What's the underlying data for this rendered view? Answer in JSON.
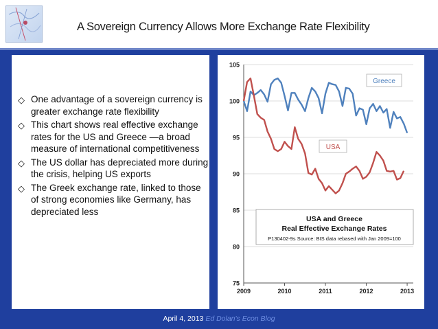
{
  "slide": {
    "title": "A Sovereign Currency Allows More Exchange Rate Flexibility",
    "bullets": [
      "One advantage of a sovereign currency is greater exchange rate flexibility",
      "This chart shows real effective exchange rates for the US and Greece —a broad measure of international competitiveness",
      "The US dollar has depreciated more during the crisis, helping US exports",
      "The Greek exchange rate, linked to those of strong economies like Germany, has depreciated less"
    ],
    "footer_date": "April 4, 2013",
    "footer_blog": "Ed Dolan's Econ Blog"
  },
  "colors": {
    "background": "#1f3f9e",
    "greece": "#4f81bd",
    "usa": "#c0504d"
  },
  "chart_data": {
    "type": "line",
    "title": "USA and Greece\nReal Effective Exchange Rates",
    "note": "P130402-9s Source: BIS data rebased with Jan 2009=100",
    "xlabel": "",
    "ylabel": "",
    "xlim": [
      2009,
      2013.15
    ],
    "ylim": [
      75,
      105
    ],
    "x_ticks": [
      "2009",
      "2010",
      "2011",
      "2012",
      "2013"
    ],
    "y_ticks": [
      "75",
      "80",
      "85",
      "90",
      "95",
      "100",
      "105"
    ],
    "grid": true,
    "x": [
      2009.0,
      2009.083,
      2009.167,
      2009.25,
      2009.333,
      2009.417,
      2009.5,
      2009.583,
      2009.667,
      2009.75,
      2009.833,
      2009.917,
      2010.0,
      2010.083,
      2010.167,
      2010.25,
      2010.333,
      2010.417,
      2010.5,
      2010.583,
      2010.667,
      2010.75,
      2010.833,
      2010.917,
      2011.0,
      2011.083,
      2011.167,
      2011.25,
      2011.333,
      2011.417,
      2011.5,
      2011.583,
      2011.667,
      2011.75,
      2011.833,
      2011.917,
      2012.0,
      2012.083,
      2012.167,
      2012.25,
      2012.333,
      2012.417,
      2012.5,
      2012.583,
      2012.667,
      2012.75,
      2012.833,
      2012.917,
      2013.0,
      2013.083,
      2013.167
    ],
    "series": [
      {
        "name": "Greece",
        "values": [
          100.0,
          98.6,
          101.3,
          100.8,
          101.1,
          101.5,
          100.9,
          99.9,
          102.3,
          102.9,
          103.1,
          102.5,
          100.7,
          98.7,
          101.1,
          101.1,
          100.2,
          99.5,
          98.6,
          100.4,
          101.8,
          101.3,
          100.4,
          98.3,
          101.0,
          102.5,
          102.3,
          102.2,
          101.3,
          99.3,
          101.8,
          101.7,
          101.0,
          98.0,
          99.0,
          98.8,
          96.8,
          99.0,
          99.6,
          98.6,
          99.3,
          98.4,
          98.9,
          96.3,
          98.5,
          97.6,
          97.8,
          96.9,
          95.6,
          null,
          null
        ]
      },
      {
        "name": "USA",
        "values": [
          100.0,
          102.6,
          103.1,
          100.7,
          98.2,
          97.7,
          97.4,
          95.8,
          94.8,
          93.4,
          93.1,
          93.4,
          94.4,
          93.8,
          93.4,
          96.4,
          94.8,
          94.1,
          92.8,
          90.1,
          89.9,
          90.7,
          89.3,
          88.7,
          87.7,
          88.3,
          87.8,
          87.3,
          87.7,
          88.7,
          90.0,
          90.3,
          90.7,
          91.0,
          90.4,
          89.3,
          89.6,
          90.2,
          91.5,
          93.0,
          92.5,
          91.8,
          90.4,
          90.3,
          90.4,
          89.2,
          89.4,
          90.4,
          null,
          null,
          null
        ]
      }
    ],
    "series_labels": [
      "Greece",
      "USA"
    ],
    "annotations": [
      "P130402-9s Source: BIS data rebased with Jan 2009=100"
    ]
  }
}
